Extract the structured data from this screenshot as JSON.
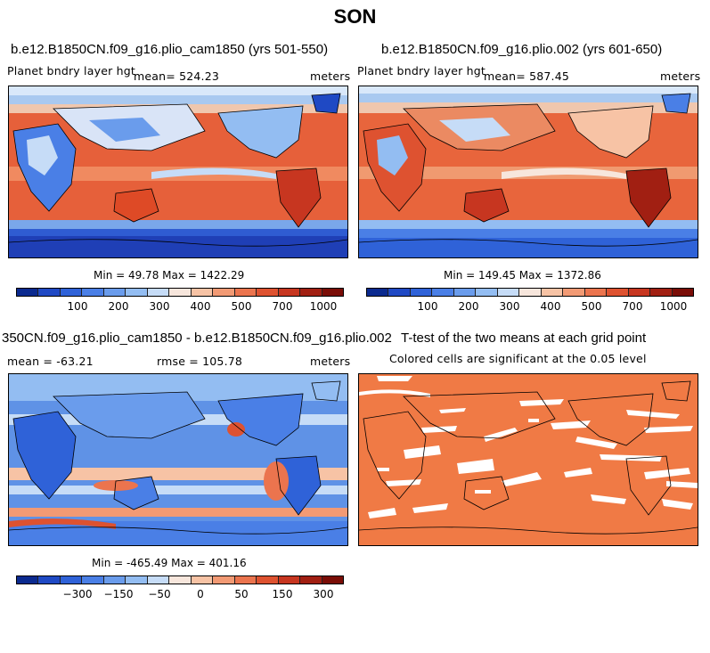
{
  "figure": {
    "season": "SON"
  },
  "panels": {
    "p1": {
      "title": "b.e12.B1850CN.f09_g16.plio_cam1850 (yrs 501-550)",
      "variable": "Planet bndry layer hgt",
      "mean": "mean= 524.23",
      "units": "meters",
      "minmax": "Min =  49.78 Max = 1422.29"
    },
    "p2": {
      "title": "b.e12.B1850CN.f09_g16.plio.002 (yrs 601-650)",
      "variable": "Planet bndry layer hgt",
      "mean": "mean= 587.45",
      "units": "meters",
      "minmax": "Min = 149.45 Max = 1372.86"
    },
    "p3": {
      "title": "350CN.f09_g16.plio_cam1850 - b.e12.B1850CN.f09_g16.plio.002",
      "mean": "mean = -63.21",
      "rmse": "rmse = 105.78",
      "units": "meters",
      "minmax": "Min = -465.49 Max = 401.16"
    },
    "p4": {
      "title": "T-test of the two means at each grid point",
      "subtitle": "Colored cells are significant at the 0.05 level"
    }
  },
  "colorbars": {
    "abs": {
      "colors": [
        "#0b2a8f",
        "#1f49c4",
        "#2f62d8",
        "#4a7fe6",
        "#6a9cec",
        "#93bdf2",
        "#c6dcf7",
        "#f7e6dc",
        "#f7c3a5",
        "#f29a74",
        "#eb744e",
        "#de5230",
        "#c73620",
        "#a11f12",
        "#7a0d07"
      ],
      "labels": [
        "100",
        "200",
        "300",
        "400",
        "500",
        "700",
        "1000"
      ],
      "label_positions": [
        3,
        5,
        7,
        9,
        11,
        13,
        15
      ]
    },
    "diff": {
      "colors": [
        "#0b2a8f",
        "#1f49c4",
        "#2f62d8",
        "#4a7fe6",
        "#6a9cec",
        "#93bdf2",
        "#c6dcf7",
        "#f7e6dc",
        "#f7c3a5",
        "#f29a74",
        "#eb744e",
        "#de5230",
        "#c73620",
        "#a11f12",
        "#7a0d07"
      ],
      "labels": [
        "-300",
        "-150",
        "-50",
        "0",
        "50",
        "150",
        "300"
      ],
      "label_positions": [
        3,
        5,
        7,
        9,
        11,
        13,
        15
      ]
    }
  },
  "colors": {
    "ocean_warm": "#eb7a4f",
    "land_cool": "#5a8fe0",
    "ttest_fill": "#f07a45"
  }
}
